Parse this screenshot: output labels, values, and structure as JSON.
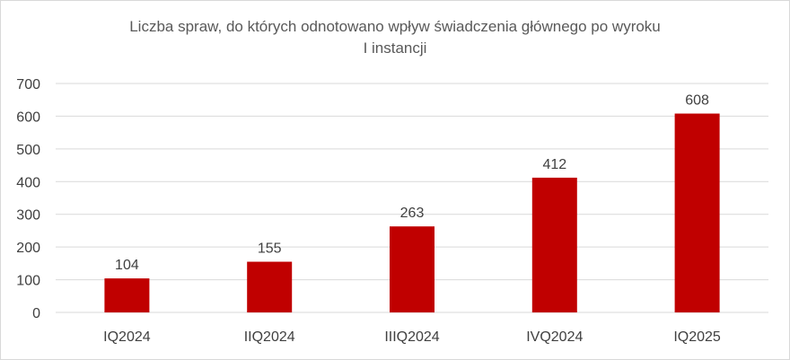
{
  "chart_data": {
    "type": "bar",
    "title_lines": [
      "Liczba spraw, do których odnotowano wpływ świadczenia głównego po wyroku",
      "I instancji"
    ],
    "categories": [
      "IQ2024",
      "IIQ2024",
      "IIIQ2024",
      "IVQ2024",
      "IQ2025"
    ],
    "values": [
      104,
      155,
      263,
      412,
      608
    ],
    "ylim": [
      0,
      700
    ],
    "yticks": [
      0,
      100,
      200,
      300,
      400,
      500,
      600,
      700
    ],
    "grid": true,
    "data_labels": true,
    "bar_color": "#c00000",
    "grid_color": "#d9d9d9",
    "text_color": "#404040",
    "title_color": "#595959"
  }
}
